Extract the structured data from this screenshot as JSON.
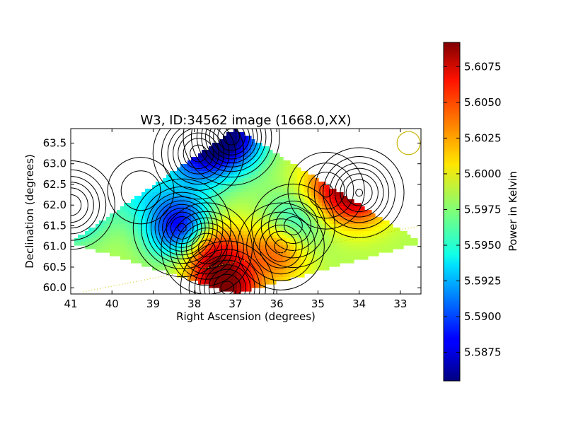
{
  "chart_data": {
    "type": "heatmap",
    "title": "W3, ID:34562 image (1668.0,XX)",
    "xlabel": "Right Ascension (degrees)",
    "ylabel": "Declination (degrees)",
    "xlim": [
      41.0,
      32.5
    ],
    "ylim": [
      59.85,
      63.85
    ],
    "x_ticks": [
      41,
      40,
      39,
      38,
      37,
      36,
      35,
      34,
      33
    ],
    "y_ticks": [
      60.0,
      60.5,
      61.0,
      61.5,
      62.0,
      62.5,
      63.0,
      63.5
    ],
    "y_tick_labels": [
      "60.0",
      "60.5",
      "61.0",
      "61.5",
      "62.0",
      "62.5",
      "63.0",
      "63.5"
    ],
    "colorbar": {
      "label": "Power in Kelvin",
      "range": [
        5.5855,
        5.6092
      ],
      "ticks": [
        5.5875,
        5.59,
        5.5925,
        5.595,
        5.5975,
        5.6,
        5.6025,
        5.605,
        5.6075
      ],
      "tick_labels": [
        "5.5875",
        "5.5900",
        "5.5925",
        "5.5950",
        "5.5975",
        "5.6000",
        "5.6025",
        "5.6050",
        "5.6075"
      ],
      "colormap": "jet"
    },
    "background_level": 5.5985,
    "features": [
      {
        "kind": "minimum",
        "ra": 38.3,
        "dec": 61.45,
        "value": 5.5863
      },
      {
        "kind": "minimum",
        "ra": 37.1,
        "dec": 63.65,
        "value": 5.587
      },
      {
        "kind": "minimum",
        "ra": 37.9,
        "dec": 63.25,
        "value": 5.5895
      },
      {
        "kind": "minimum",
        "ra": 41.0,
        "dec": 62.0,
        "value": 5.5905
      },
      {
        "kind": "minimum",
        "ra": 35.6,
        "dec": 61.5,
        "value": 5.592
      },
      {
        "kind": "minimum",
        "ra": 39.3,
        "dec": 62.35,
        "value": 5.595
      },
      {
        "kind": "maximum",
        "ra": 37.2,
        "dec": 60.0,
        "value": 5.6085
      },
      {
        "kind": "maximum",
        "ra": 37.7,
        "dec": 60.95,
        "value": 5.6075
      },
      {
        "kind": "maximum",
        "ra": 34.0,
        "dec": 62.3,
        "value": 5.607
      },
      {
        "kind": "maximum",
        "ra": 35.9,
        "dec": 61.0,
        "value": 5.606
      },
      {
        "kind": "maximum",
        "ra": 34.8,
        "dec": 62.35,
        "value": 5.6035
      }
    ],
    "survey_footprint_corners": [
      {
        "ra": 37.0,
        "dec": 63.85
      },
      {
        "ra": 32.5,
        "dec": 61.1
      },
      {
        "ra": 37.0,
        "dec": 59.85
      },
      {
        "ra": 41.0,
        "dec": 61.1
      }
    ],
    "beam_circle": {
      "ra": 32.8,
      "dec": 63.5,
      "radius_deg": 0.28,
      "color": "#c8b400"
    },
    "dotted_track": {
      "from": {
        "ra": 40.7,
        "dec": 59.9
      },
      "to": {
        "ra": 32.5,
        "dec": 61.5
      },
      "color": "#c8c800"
    },
    "colors": {
      "contour": "#000000",
      "frame": "#000000"
    }
  }
}
